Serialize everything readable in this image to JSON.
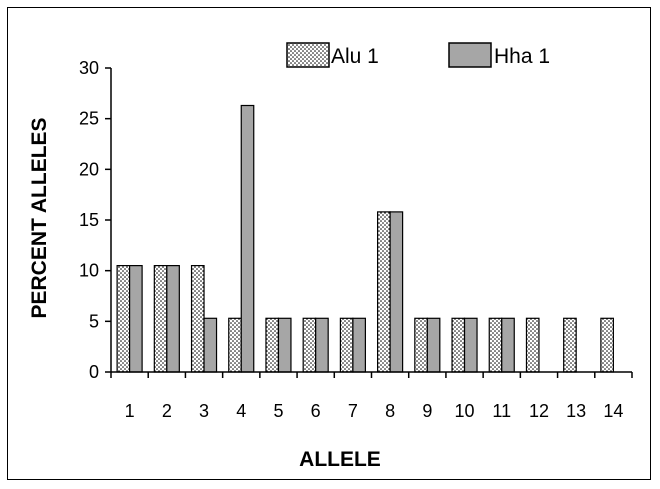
{
  "chart_data": {
    "type": "bar",
    "categories": [
      "1",
      "2",
      "3",
      "4",
      "5",
      "6",
      "7",
      "8",
      "9",
      "10",
      "11",
      "12",
      "13",
      "14"
    ],
    "series": [
      {
        "name": "Alu 1",
        "values": [
          10.5,
          10.5,
          10.5,
          5.3,
          5.3,
          5.3,
          5.3,
          15.8,
          5.3,
          5.3,
          5.3,
          5.3,
          5.3,
          5.3
        ],
        "pattern": "dotted",
        "color": "#ffffff"
      },
      {
        "name": "Hha 1",
        "values": [
          10.5,
          10.5,
          5.3,
          26.3,
          5.3,
          5.3,
          5.3,
          15.8,
          5.3,
          5.3,
          5.3,
          0,
          0,
          0
        ],
        "pattern": "solid",
        "color": "#a6a6a6"
      }
    ],
    "xlabel": "ALLELE",
    "ylabel": "PERCENT ALLELES",
    "ylim": [
      0,
      30
    ],
    "yticks": [
      "0",
      "5",
      "10",
      "15",
      "20",
      "25",
      "30"
    ],
    "grid": false,
    "legend_position": "top-right"
  }
}
